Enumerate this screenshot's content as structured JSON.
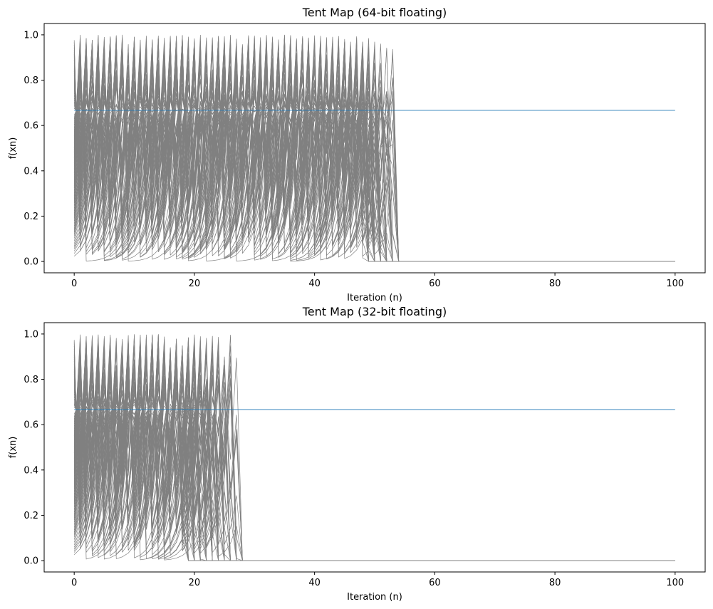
{
  "chart_data": [
    {
      "type": "line",
      "title": "Tent Map (64-bit floating)",
      "xlabel": "Iteration (n)",
      "ylabel": "f(xn)",
      "xlim": [
        -5,
        105
      ],
      "ylim": [
        -0.05,
        1.05
      ],
      "xticks": [
        0,
        20,
        40,
        60,
        80,
        100
      ],
      "yticks": [
        0.0,
        0.2,
        0.4,
        0.6,
        0.8,
        1.0
      ],
      "xtick_labels": [
        "0",
        "20",
        "40",
        "60",
        "80",
        "100"
      ],
      "ytick_labels": [
        "0.0",
        "0.2",
        "0.4",
        "0.6",
        "0.8",
        "1.0"
      ],
      "iterations": 100,
      "trajectory_count": 100,
      "initial_value_range": [
        0.02,
        0.98
      ],
      "collapse_iteration_range": [
        49,
        54
      ],
      "final_value": 0.0,
      "fixed_point_value": 0.6667,
      "grid": false,
      "colors": {
        "trajectories": "#808080",
        "fixed_point": "#1f77b4"
      }
    },
    {
      "type": "line",
      "title": "Tent Map (32-bit floating)",
      "xlabel": "Iteration (n)",
      "ylabel": "f(xn)",
      "xlim": [
        -5,
        105
      ],
      "ylim": [
        -0.05,
        1.05
      ],
      "xticks": [
        0,
        20,
        40,
        60,
        80,
        100
      ],
      "yticks": [
        0.0,
        0.2,
        0.4,
        0.6,
        0.8,
        1.0
      ],
      "xtick_labels": [
        "0",
        "20",
        "40",
        "60",
        "80",
        "100"
      ],
      "ytick_labels": [
        "0.0",
        "0.2",
        "0.4",
        "0.6",
        "0.8",
        "1.0"
      ],
      "iterations": 100,
      "trajectory_count": 100,
      "initial_value_range": [
        0.02,
        0.98
      ],
      "collapse_iteration_range": [
        19,
        28
      ],
      "final_value": 0.0,
      "fixed_point_value": 0.6667,
      "grid": false,
      "colors": {
        "trajectories": "#808080",
        "fixed_point": "#1f77b4"
      }
    }
  ]
}
